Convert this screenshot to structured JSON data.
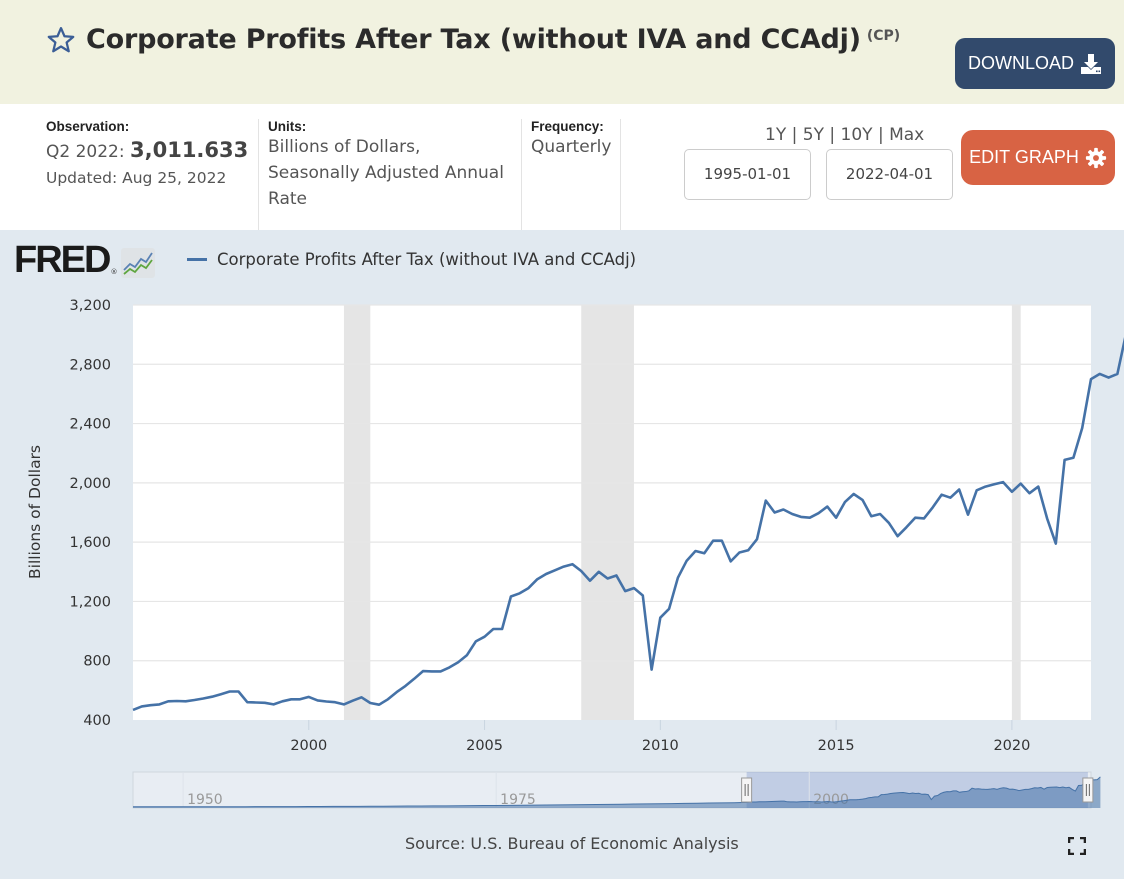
{
  "header": {
    "title": "Corporate Profits After Tax (without IVA and CCAdj)",
    "series_id": "(CP)",
    "download_label": "DOWNLOAD",
    "star_icon": "star-outline-icon",
    "download_icon": "download-icon"
  },
  "meta": {
    "observation_label": "Observation:",
    "observation_period": "Q2 2022:",
    "observation_value": "3,011.633",
    "updated": "Updated: Aug 25, 2022",
    "units_label": "Units:",
    "units_line1": "Billions of Dollars,",
    "units_line2": "Seasonally Adjusted Annual",
    "units_line3": "Rate",
    "frequency_label": "Frequency:",
    "frequency_value": "Quarterly"
  },
  "controls": {
    "ranges": [
      "1Y",
      "5Y",
      "10Y",
      "Max"
    ],
    "separator": "|",
    "start_date": "1995-01-01",
    "end_date": "2022-04-01",
    "edit_label": "EDIT GRAPH",
    "edit_icon": "gear-icon"
  },
  "logo": {
    "text": "FRED",
    "reg": "®"
  },
  "source": "Source: U.S. Bureau of Economic Analysis",
  "colors": {
    "line": "#4572a7",
    "recession": "#e5e5e5",
    "download_bg": "#324a6c",
    "edit_bg": "#d86344",
    "panel_bg": "#e1e9f0",
    "header_bg": "#f1f2e0"
  },
  "chart_data": {
    "type": "line",
    "title": "Corporate Profits After Tax (without IVA and CCAdj)",
    "xlabel": "",
    "ylabel": "Billions of Dollars",
    "ylim": [
      400,
      3200
    ],
    "xlim": [
      "1995-01-01",
      "2022-04-01"
    ],
    "grid": true,
    "legend": "top-left",
    "y_ticks": [
      400,
      800,
      1200,
      1600,
      2000,
      2400,
      2800,
      3200
    ],
    "y_tick_labels": [
      "400",
      "800",
      "1,200",
      "1,600",
      "2,000",
      "2,400",
      "2,800",
      "3,200"
    ],
    "x_ticks": [
      2000,
      2005,
      2010,
      2015,
      2020
    ],
    "x_tick_labels": [
      "2000",
      "2005",
      "2010",
      "2015",
      "2020"
    ],
    "recessions": [
      [
        2001.0,
        2001.75
      ],
      [
        2007.75,
        2009.25
      ],
      [
        2020.0,
        2020.25
      ]
    ],
    "navigator": {
      "labels": [
        "1950",
        "1975",
        "2000"
      ],
      "label_years": [
        1950,
        1975,
        2000
      ],
      "range_years": [
        1946,
        2022.5
      ],
      "selected": [
        1995.0,
        2022.25
      ]
    },
    "series": [
      {
        "name": "Corporate Profits After Tax (without IVA and CCAdj)",
        "start": 1995.0,
        "step": 0.25,
        "values": [
          468,
          492,
          500,
          505,
          526,
          528,
          526,
          535,
          545,
          557,
          574,
          592,
          592,
          520,
          518,
          516,
          505,
          526,
          540,
          540,
          556,
          532,
          525,
          520,
          505,
          530,
          553,
          515,
          503,
          540,
          588,
          630,
          678,
          730,
          728,
          728,
          755,
          790,
          838,
          930,
          962,
          1014,
          1014,
          1233,
          1255,
          1290,
          1350,
          1385,
          1410,
          1435,
          1451,
          1405,
          1340,
          1400,
          1355,
          1375,
          1270,
          1290,
          1240,
          740,
          1090,
          1150,
          1360,
          1475,
          1540,
          1525,
          1610,
          1610,
          1470,
          1530,
          1545,
          1620,
          1880,
          1800,
          1820,
          1790,
          1770,
          1765,
          1795,
          1840,
          1765,
          1870,
          1925,
          1885,
          1775,
          1790,
          1730,
          1640,
          1700,
          1765,
          1760,
          1835,
          1920,
          1900,
          1955,
          1785,
          1950,
          1975,
          1990,
          2005,
          1940,
          1995,
          1930,
          1975,
          1760,
          1590,
          2155,
          2170,
          2370,
          2700,
          2735,
          2710,
          2735,
          3012
        ]
      }
    ]
  }
}
